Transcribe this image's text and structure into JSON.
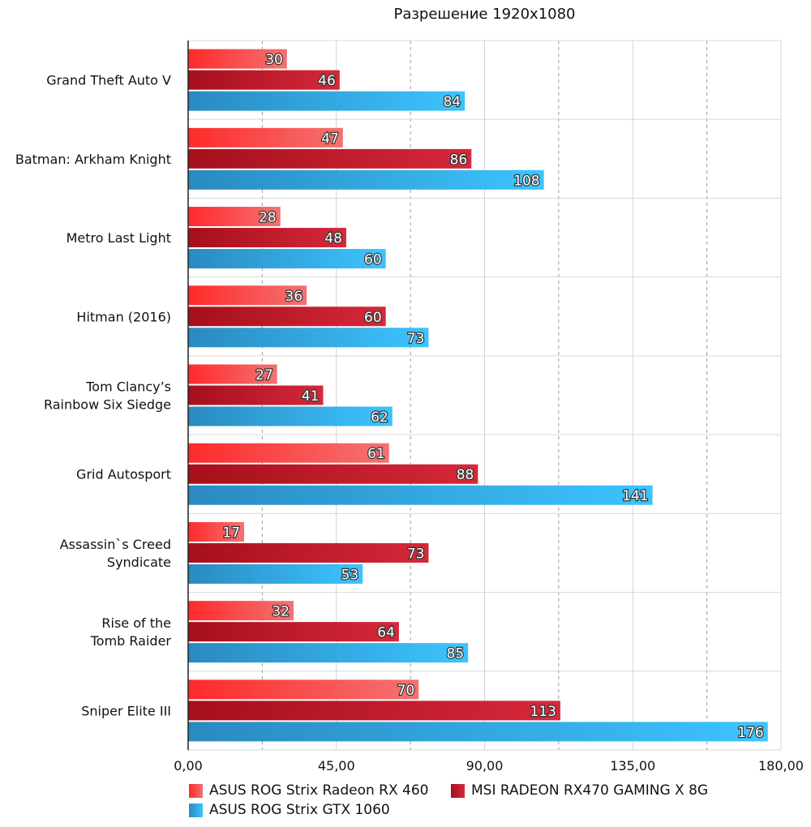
{
  "chart_data": {
    "type": "bar",
    "orientation": "horizontal",
    "title": "Разрешение 1920x1080",
    "categories": [
      [
        "Grand Theft Auto V"
      ],
      [
        "Batman: Arkham Knight"
      ],
      [
        "Metro Last Light"
      ],
      [
        "Hitman (2016)"
      ],
      [
        "Tom Clancy’s",
        "Rainbow Six Siedge"
      ],
      [
        "Grid Autosport"
      ],
      [
        "Assassin`s Creed",
        "Syndicate"
      ],
      [
        "Rise of the",
        "Tomb Raider"
      ],
      [
        "Sniper Elite III"
      ]
    ],
    "series": [
      {
        "name": "ASUS ROG Strix Radeon RX 460",
        "values": [
          30,
          47,
          28,
          36,
          27,
          61,
          17,
          32,
          70
        ],
        "color_from": "#ff2a2a",
        "color_to": "#f47272"
      },
      {
        "name": "MSI RADEON RX470 GAMING X 8G",
        "values": [
          46,
          86,
          48,
          60,
          41,
          88,
          73,
          64,
          113
        ],
        "color_from": "#a50f1c",
        "color_to": "#d6283a"
      },
      {
        "name": "ASUS ROG Strix GTX 1060",
        "values": [
          84,
          108,
          60,
          73,
          62,
          141,
          53,
          85,
          176
        ],
        "color_from": "#2a8ac0",
        "color_to": "#3cc4ff"
      }
    ],
    "xlim": [
      0,
      180
    ],
    "xticks": [
      "0,00",
      "45,00",
      "90,00",
      "135,00",
      "180,00"
    ],
    "xtick_values": [
      0,
      45,
      90,
      135,
      180
    ],
    "minor_gridlines": [
      22.5,
      67.5,
      112.5,
      157.5
    ],
    "grid": true,
    "legend_position": "bottom"
  }
}
